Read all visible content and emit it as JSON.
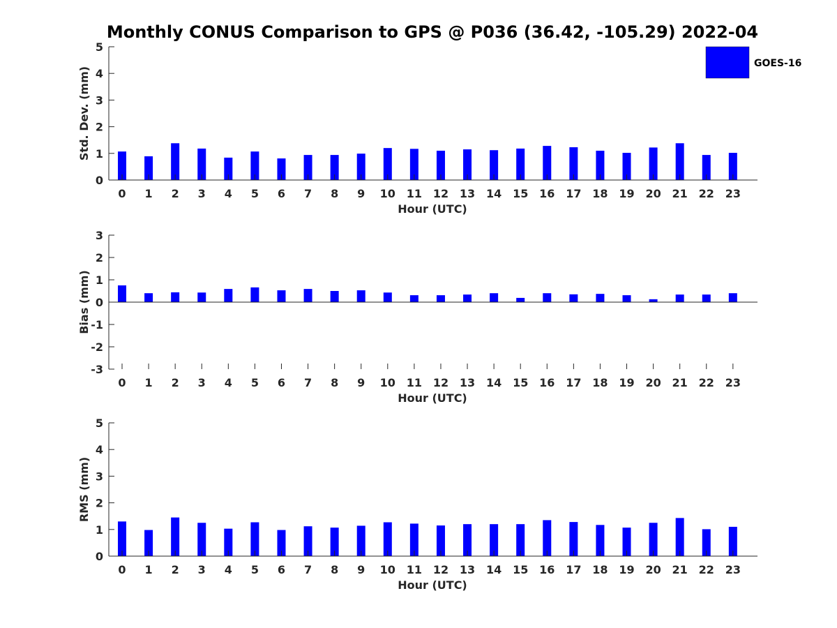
{
  "chart_data": {
    "type": "bar",
    "title": "Monthly CONUS Comparison to GPS @ P036 (36.42, -105.29) 2022-04",
    "legend": {
      "label": "GOES-16",
      "color": "#0000ff",
      "position": "top-right"
    },
    "panels": [
      {
        "ylabel": "Std. Dev. (mm)",
        "xlabel": "Hour (UTC)",
        "ylim": [
          0,
          5
        ],
        "yticks": [
          "0",
          "1",
          "2",
          "3",
          "4",
          "5"
        ],
        "categories": [
          "0",
          "1",
          "2",
          "3",
          "4",
          "5",
          "6",
          "7",
          "8",
          "9",
          "10",
          "11",
          "12",
          "13",
          "14",
          "15",
          "16",
          "17",
          "18",
          "19",
          "20",
          "21",
          "22",
          "23"
        ],
        "series": [
          {
            "name": "GOES-16",
            "values": [
              1.07,
              0.89,
              1.38,
              1.18,
              0.84,
              1.07,
              0.81,
              0.94,
              0.94,
              0.99,
              1.2,
              1.17,
              1.1,
              1.15,
              1.12,
              1.18,
              1.28,
              1.23,
              1.1,
              1.02,
              1.22,
              1.38,
              0.94,
              1.02
            ]
          }
        ]
      },
      {
        "ylabel": "Bias (mm)",
        "xlabel": "Hour (UTC)",
        "ylim": [
          -3,
          3
        ],
        "yticks": [
          "-3",
          "-2",
          "-1",
          "0",
          "1",
          "2",
          "3"
        ],
        "categories": [
          "0",
          "1",
          "2",
          "3",
          "4",
          "5",
          "6",
          "7",
          "8",
          "9",
          "10",
          "11",
          "12",
          "13",
          "14",
          "15",
          "16",
          "17",
          "18",
          "19",
          "20",
          "21",
          "22",
          "23"
        ],
        "series": [
          {
            "name": "GOES-16",
            "values": [
              0.75,
              0.4,
              0.44,
              0.43,
              0.59,
              0.66,
              0.53,
              0.59,
              0.5,
              0.53,
              0.43,
              0.31,
              0.31,
              0.34,
              0.4,
              0.19,
              0.4,
              0.35,
              0.37,
              0.31,
              0.13,
              0.34,
              0.34,
              0.4
            ]
          }
        ]
      },
      {
        "ylabel": "RMS (mm)",
        "xlabel": "Hour (UTC)",
        "ylim": [
          0,
          5
        ],
        "yticks": [
          "0",
          "1",
          "2",
          "3",
          "4",
          "5"
        ],
        "categories": [
          "0",
          "1",
          "2",
          "3",
          "4",
          "5",
          "6",
          "7",
          "8",
          "9",
          "10",
          "11",
          "12",
          "13",
          "14",
          "15",
          "16",
          "17",
          "18",
          "19",
          "20",
          "21",
          "22",
          "23"
        ],
        "series": [
          {
            "name": "GOES-16",
            "values": [
              1.3,
              0.98,
              1.45,
              1.25,
              1.03,
              1.27,
              0.98,
              1.12,
              1.07,
              1.14,
              1.27,
              1.22,
              1.15,
              1.2,
              1.2,
              1.2,
              1.35,
              1.28,
              1.17,
              1.07,
              1.25,
              1.43,
              1.01,
              1.1
            ]
          }
        ]
      }
    ]
  }
}
